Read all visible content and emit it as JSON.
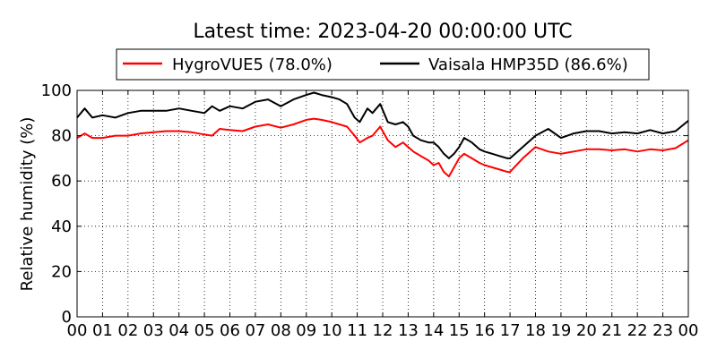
{
  "chart_data": {
    "type": "line",
    "title": "Latest time: 2023-04-20 00:00:00 UTC",
    "xlabel": "",
    "ylabel": "Relative humidity (%)",
    "ylim": [
      0,
      100
    ],
    "yticks": [
      0,
      20,
      40,
      60,
      80,
      100
    ],
    "xlim": [
      0,
      24
    ],
    "xticks": [
      "00",
      "01",
      "02",
      "03",
      "04",
      "05",
      "06",
      "07",
      "08",
      "09",
      "10",
      "11",
      "12",
      "13",
      "14",
      "15",
      "16",
      "17",
      "18",
      "19",
      "20",
      "21",
      "22",
      "23",
      "00"
    ],
    "grid": true,
    "legend_position": "top",
    "series": [
      {
        "name": "HygroVUE5 (78.0%)",
        "color": "#ff0000",
        "x": [
          0.0,
          0.3,
          0.6,
          1.0,
          1.5,
          2.0,
          2.5,
          3.0,
          3.5,
          4.0,
          4.5,
          5.0,
          5.3,
          5.6,
          6.0,
          6.5,
          7.0,
          7.5,
          8.0,
          8.5,
          9.0,
          9.3,
          9.6,
          10.0,
          10.3,
          10.6,
          10.9,
          11.1,
          11.4,
          11.6,
          11.9,
          12.2,
          12.5,
          12.8,
          13.0,
          13.2,
          13.5,
          13.8,
          14.0,
          14.2,
          14.4,
          14.6,
          14.8,
          15.0,
          15.2,
          15.5,
          15.8,
          16.0,
          16.3,
          16.6,
          16.9,
          17.0,
          17.5,
          18.0,
          18.5,
          19.0,
          19.5,
          20.0,
          20.5,
          21.0,
          21.5,
          22.0,
          22.5,
          23.0,
          23.5,
          24.0
        ],
        "y": [
          79,
          81,
          79,
          79,
          80,
          80,
          81,
          81.5,
          82,
          82,
          81.5,
          80.5,
          80,
          83,
          82.5,
          82,
          84,
          85,
          83.5,
          85,
          87,
          87.5,
          87,
          86,
          85,
          84,
          80,
          77,
          79,
          80,
          84,
          78,
          75,
          77,
          75,
          73,
          71,
          69,
          67,
          68,
          64,
          62,
          66,
          70,
          72,
          70,
          68,
          67,
          66,
          65,
          64,
          64,
          70,
          75,
          73,
          72,
          73,
          74,
          74,
          73.5,
          74,
          73,
          74,
          73.5,
          74.5,
          78
        ]
      },
      {
        "name": "Vaisala HMP35D (86.6%)",
        "color": "#000000",
        "x": [
          0.0,
          0.3,
          0.6,
          1.0,
          1.5,
          2.0,
          2.5,
          3.0,
          3.5,
          4.0,
          4.5,
          5.0,
          5.3,
          5.6,
          6.0,
          6.5,
          7.0,
          7.5,
          8.0,
          8.5,
          9.0,
          9.3,
          9.6,
          10.0,
          10.3,
          10.6,
          10.9,
          11.1,
          11.4,
          11.6,
          11.9,
          12.2,
          12.5,
          12.8,
          13.0,
          13.2,
          13.5,
          13.8,
          14.0,
          14.2,
          14.4,
          14.6,
          14.8,
          15.0,
          15.2,
          15.5,
          15.8,
          16.0,
          16.3,
          16.6,
          16.9,
          17.0,
          17.5,
          18.0,
          18.5,
          19.0,
          19.5,
          20.0,
          20.5,
          21.0,
          21.5,
          22.0,
          22.5,
          23.0,
          23.5,
          24.0
        ],
        "y": [
          88,
          92,
          88,
          89,
          88,
          90,
          91,
          91,
          91,
          92,
          91,
          90,
          93,
          91,
          93,
          92,
          95,
          96,
          93,
          96,
          98,
          99,
          98,
          97,
          96,
          94,
          88,
          86,
          92,
          90,
          94,
          86,
          85,
          86,
          84,
          80,
          78,
          77,
          77,
          75,
          72,
          70,
          72,
          75,
          79,
          77,
          74,
          73,
          72,
          71,
          70,
          70,
          75,
          80,
          83,
          79,
          81,
          82,
          82,
          81,
          81.5,
          81,
          82.5,
          81,
          82,
          86.6
        ]
      }
    ]
  }
}
